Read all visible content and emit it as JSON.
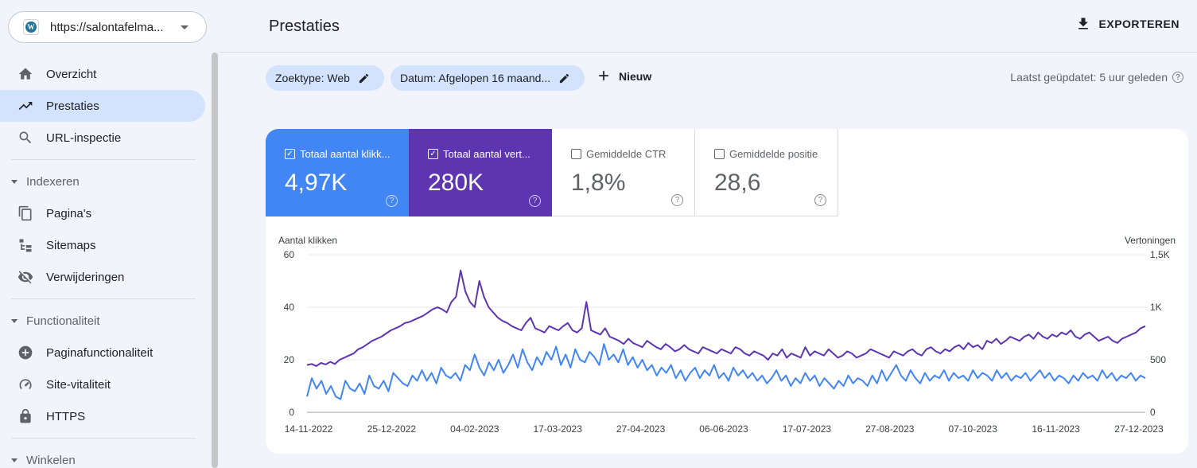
{
  "property": {
    "url": "https://salontafelma...",
    "logo_letter": "W"
  },
  "nav": {
    "items": [
      {
        "label": "Overzicht",
        "icon": "home-icon"
      },
      {
        "label": "Prestaties",
        "icon": "trending-up-icon",
        "active": true
      },
      {
        "label": "URL-inspectie",
        "icon": "search-icon"
      }
    ],
    "sections": [
      {
        "title": "Indexeren",
        "items": [
          {
            "label": "Pagina's",
            "icon": "pages-icon"
          },
          {
            "label": "Sitemaps",
            "icon": "sitemap-icon"
          },
          {
            "label": "Verwijderingen",
            "icon": "eye-off-icon"
          }
        ]
      },
      {
        "title": "Functionaliteit",
        "items": [
          {
            "label": "Paginafunctionaliteit",
            "icon": "plus-circle-icon"
          },
          {
            "label": "Site-vitaliteit",
            "icon": "gauge-icon"
          },
          {
            "label": "HTTPS",
            "icon": "lock-icon"
          }
        ]
      },
      {
        "title": "Winkelen",
        "items": []
      }
    ]
  },
  "header": {
    "title": "Prestaties",
    "export_label": "EXPORTEREN"
  },
  "filters": {
    "search_type": "Zoektype: Web",
    "date": "Datum: Afgelopen 16 maand...",
    "new_label": "Nieuw",
    "last_updated": "Laatst geüpdatet: 5 uur geleden"
  },
  "metrics": [
    {
      "label": "Totaal aantal klikk...",
      "value": "4,97K",
      "checked": true,
      "color": "#4285f4"
    },
    {
      "label": "Totaal aantal vert...",
      "value": "280K",
      "checked": true,
      "color": "#5e35b1"
    },
    {
      "label": "Gemiddelde CTR",
      "value": "1,8%",
      "checked": false
    },
    {
      "label": "Gemiddelde positie",
      "value": "28,6",
      "checked": false
    }
  ],
  "chart_data": {
    "type": "line",
    "left_axis_label": "Aantal klikken",
    "right_axis_label": "Vertoningen",
    "left_ticks": [
      "0",
      "20",
      "40",
      "60"
    ],
    "right_ticks": [
      "0",
      "500",
      "1K",
      "1,5K"
    ],
    "left_range": [
      0,
      60
    ],
    "right_range": [
      0,
      1500
    ],
    "x_labels": [
      "14-11-2022",
      "25-12-2022",
      "04-02-2023",
      "17-03-2023",
      "27-04-2023",
      "06-06-2023",
      "17-07-2023",
      "27-08-2023",
      "07-10-2023",
      "16-11-2023",
      "27-12-2023"
    ],
    "grid": true,
    "series": [
      {
        "name": "Totaal aantal klikken",
        "axis": "left",
        "color": "#4285f4",
        "values": [
          6,
          13,
          9,
          12,
          7,
          10,
          6,
          5,
          12,
          9,
          8,
          11,
          7,
          14,
          10,
          9,
          12,
          8,
          15,
          13,
          11,
          10,
          14,
          12,
          16,
          12,
          15,
          11,
          17,
          14,
          13,
          15,
          12,
          18,
          16,
          22,
          17,
          14,
          19,
          16,
          20,
          15,
          18,
          22,
          17,
          24,
          19,
          16,
          21,
          18,
          23,
          20,
          25,
          18,
          22,
          17,
          24,
          20,
          19,
          23,
          21,
          18,
          26,
          20,
          22,
          19,
          24,
          18,
          21,
          17,
          20,
          16,
          18,
          14,
          17,
          15,
          18,
          13,
          16,
          12,
          15,
          17,
          13,
          16,
          14,
          18,
          13,
          15,
          12,
          17,
          14,
          16,
          13,
          15,
          12,
          14,
          11,
          13,
          16,
          12,
          14,
          10,
          13,
          11,
          15,
          12,
          14,
          10,
          13,
          11,
          9,
          12,
          10,
          14,
          11,
          13,
          12,
          10,
          14,
          11,
          16,
          12,
          15,
          18,
          14,
          12,
          16,
          13,
          11,
          15,
          12,
          14,
          13,
          16,
          12,
          15,
          13,
          14,
          12,
          16,
          13,
          15,
          14,
          12,
          16,
          13,
          15,
          12,
          14,
          13,
          15,
          12,
          14,
          16,
          13,
          15,
          12,
          14,
          13,
          11,
          14,
          12,
          15,
          13,
          14,
          12,
          16,
          13,
          15,
          12,
          14,
          13,
          15,
          12,
          14,
          13
        ]
      },
      {
        "name": "Totaal aantal vertoningen",
        "axis": "right",
        "color": "#5e35b1",
        "values": [
          450,
          460,
          440,
          470,
          455,
          480,
          460,
          500,
          520,
          540,
          560,
          600,
          620,
          650,
          680,
          700,
          720,
          750,
          780,
          800,
          820,
          850,
          860,
          880,
          900,
          920,
          950,
          980,
          1000,
          980,
          950,
          1050,
          1100,
          1350,
          1150,
          1050,
          1000,
          1250,
          1100,
          1000,
          950,
          900,
          870,
          850,
          820,
          800,
          780,
          850,
          900,
          800,
          780,
          760,
          820,
          800,
          780,
          820,
          850,
          780,
          760,
          800,
          1050,
          780,
          760,
          740,
          800,
          720,
          700,
          680,
          650,
          700,
          660,
          640,
          620,
          680,
          650,
          620,
          600,
          650,
          620,
          580,
          600,
          640,
          600,
          580,
          560,
          620,
          600,
          580,
          560,
          600,
          580,
          560,
          620,
          600,
          560,
          540,
          580,
          560,
          540,
          500,
          560,
          540,
          600,
          520,
          560,
          540,
          520,
          620,
          540,
          580,
          560,
          540,
          600,
          560,
          520,
          540,
          580,
          560,
          520,
          540,
          560,
          600,
          580,
          560,
          540,
          520,
          580,
          560,
          540,
          580,
          600,
          560,
          540,
          600,
          620,
          580,
          560,
          600,
          580,
          620,
          640,
          600,
          660,
          620,
          640,
          600,
          680,
          660,
          700,
          650,
          680,
          720,
          700,
          680,
          720,
          740,
          700,
          760,
          720,
          700,
          740,
          720,
          760,
          740,
          780,
          720,
          700,
          740,
          760,
          720,
          680,
          700,
          720,
          680,
          660,
          700,
          720,
          740,
          760,
          800,
          820
        ]
      }
    ]
  }
}
